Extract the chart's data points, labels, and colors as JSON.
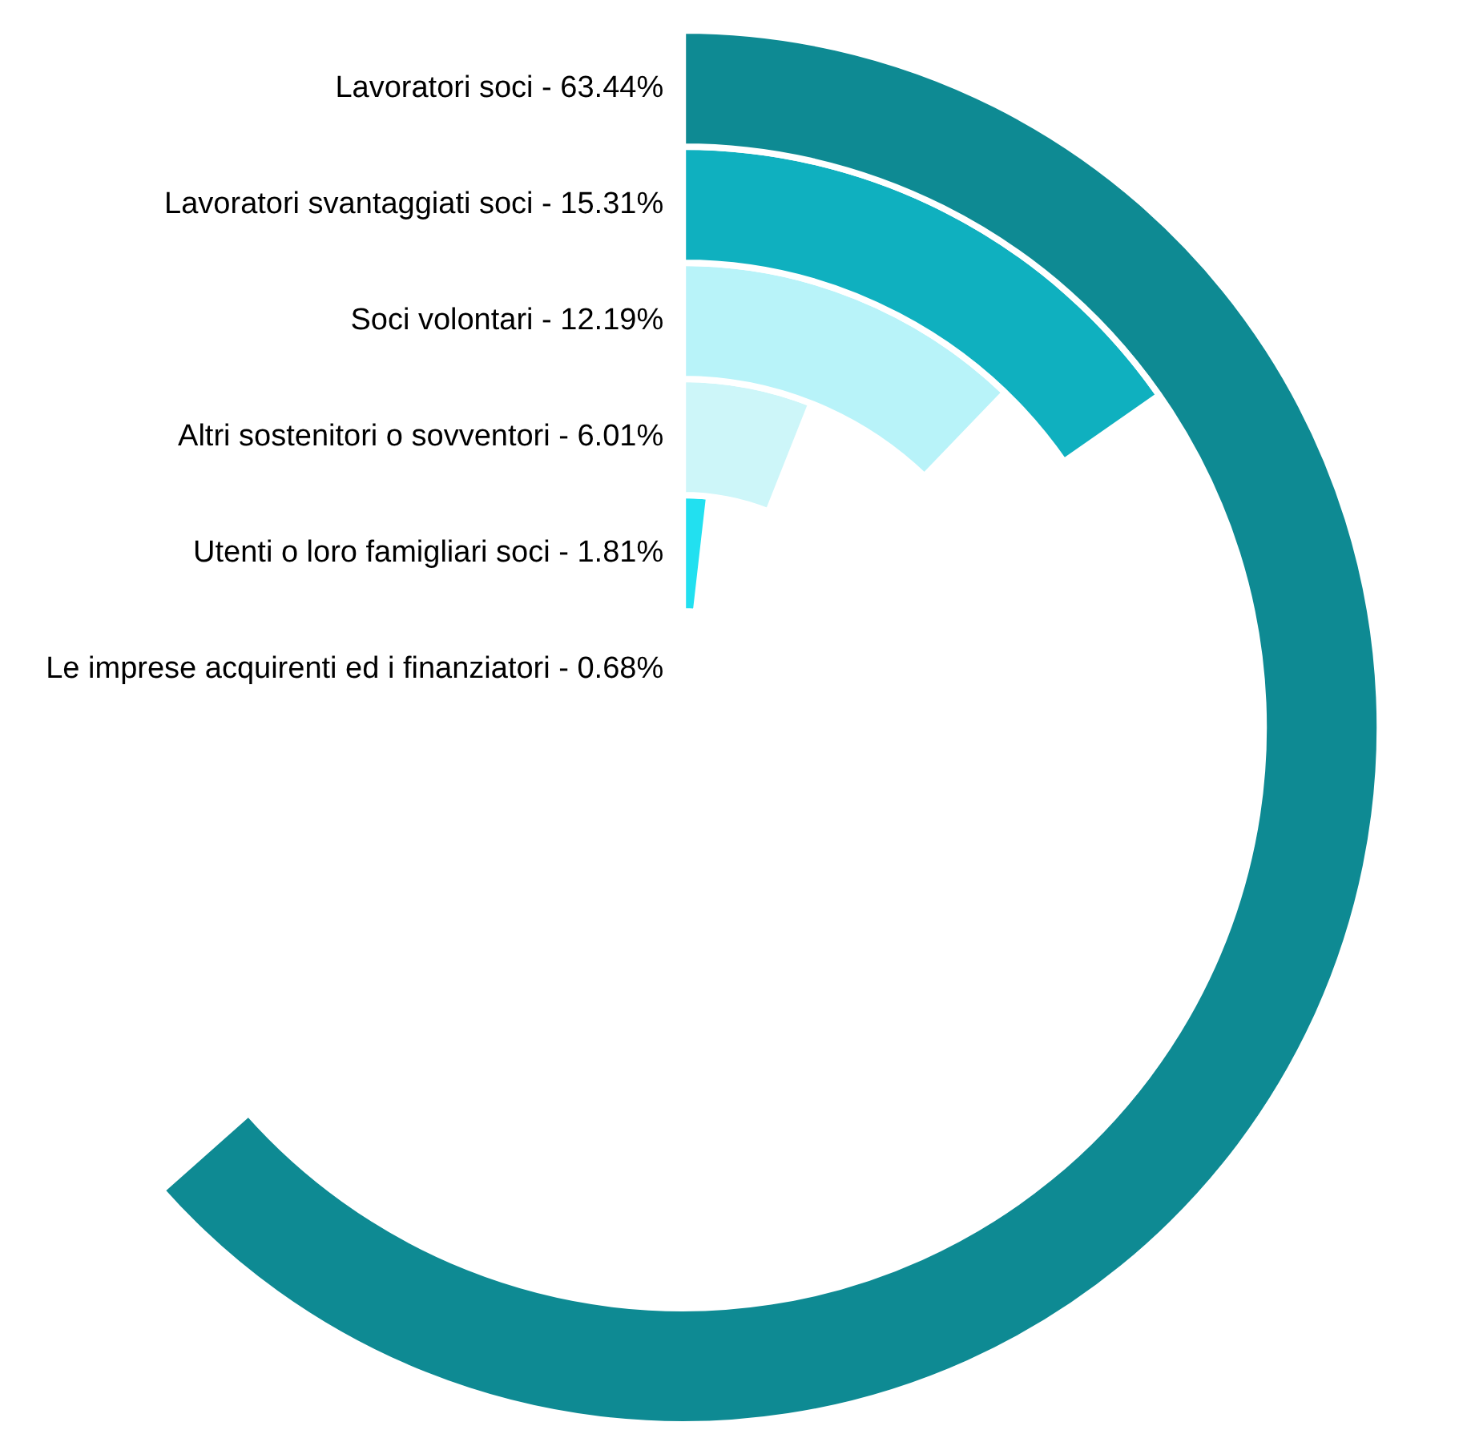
{
  "chart_data": {
    "type": "other",
    "categories": [
      "Lavoratori soci -",
      "Lavoratori svantaggiati soci -",
      "Soci volontari -",
      "Altri sostenitori o sovventori -",
      "Utenti o loro famigliari soci -",
      "Le imprese acquirenti ed i finanziatori -"
    ],
    "values": [
      63.44,
      15.31,
      12.19,
      6.01,
      1.81,
      0.68
    ],
    "value_labels": [
      "63.44%",
      "15.31%",
      "12.19%",
      "6.01%",
      "1.81%",
      "0.68%"
    ],
    "colors": [
      "#0e8a93",
      "#0fb0bf",
      "#b8f3f9",
      "#cdf6f9",
      "#22e0f0",
      "#0fa0b0"
    ],
    "legend": false
  }
}
